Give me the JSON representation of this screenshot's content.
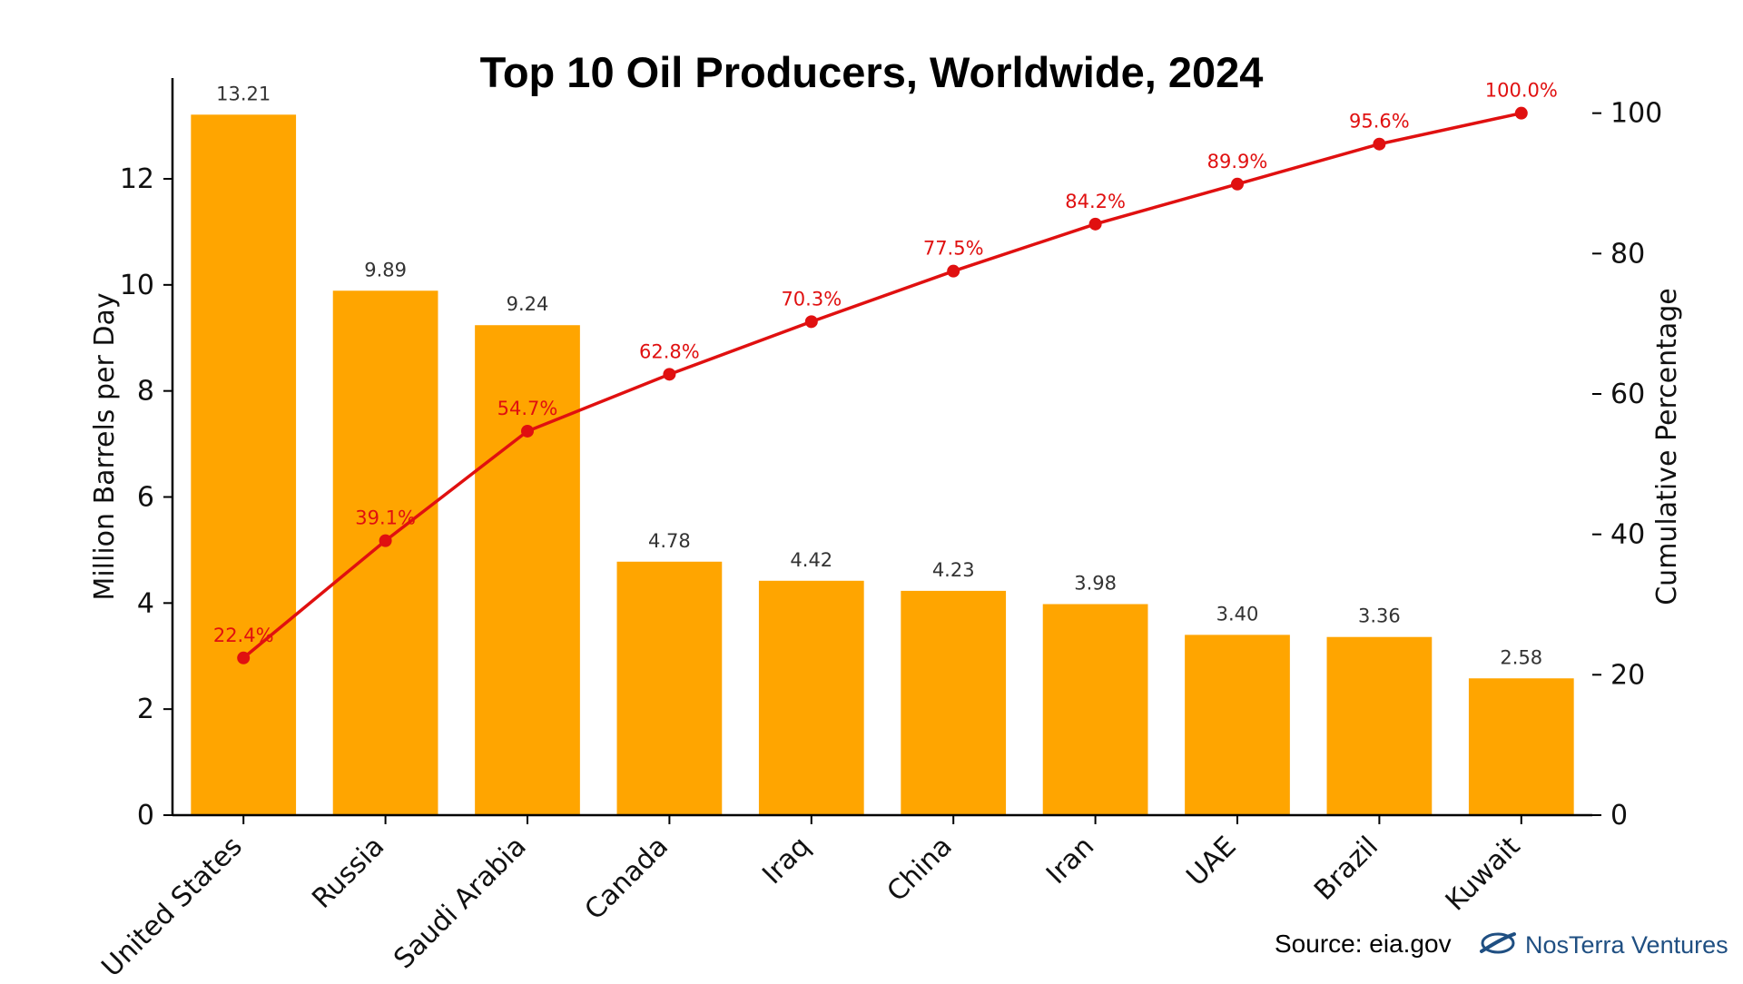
{
  "chart_data": {
    "type": "bar",
    "title": "Top 10 Oil Producers, Worldwide, 2024",
    "categories": [
      "United States",
      "Russia",
      "Saudi Arabia",
      "Canada",
      "Iraq",
      "China",
      "Iran",
      "UAE",
      "Brazil",
      "Kuwait"
    ],
    "series": [
      {
        "name": "Million Barrels per Day",
        "type": "bar",
        "axis": "left",
        "values": [
          13.21,
          9.89,
          9.24,
          4.78,
          4.42,
          4.23,
          3.98,
          3.4,
          3.36,
          2.58
        ],
        "labels": [
          "13.21",
          "9.89",
          "9.24",
          "4.78",
          "4.42",
          "4.23",
          "3.98",
          "3.40",
          "3.36",
          "2.58"
        ],
        "color": "#FFA500"
      },
      {
        "name": "Cumulative Percentage",
        "type": "line",
        "axis": "right",
        "values": [
          22.4,
          39.1,
          54.7,
          62.8,
          70.3,
          77.5,
          84.2,
          89.9,
          95.6,
          100.0
        ],
        "labels": [
          "22.4%",
          "39.1%",
          "54.7%",
          "62.8%",
          "70.3%",
          "77.5%",
          "84.2%",
          "89.9%",
          "95.6%",
          "100.0%"
        ],
        "color": "#E01010"
      }
    ],
    "ylabel": "Million Barrels per Day",
    "ylim": [
      0,
      13.9
    ],
    "yticks": [
      0,
      2,
      4,
      6,
      8,
      10,
      12
    ],
    "y2label": "Cumulative Percentage",
    "y2lim": [
      0,
      105
    ],
    "y2ticks": [
      0,
      20,
      40,
      60,
      80,
      100
    ],
    "grid": false,
    "legend": "none"
  },
  "footer": {
    "source": "Source: eia.gov",
    "brand_name": "NosTerra Ventures",
    "brand_icon": "nosterra-logo-icon",
    "brand_color": "#1f4f82"
  }
}
